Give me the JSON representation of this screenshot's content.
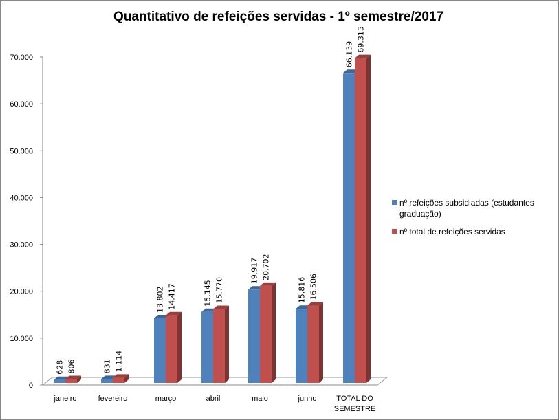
{
  "chart_data": {
    "type": "bar",
    "title": "Quantitativo de refeições servidas - 1º semestre/2017",
    "categories": [
      "janeiro",
      "fevereiro",
      "março",
      "abril",
      "maio",
      "junho",
      "TOTAL DO SEMESTRE"
    ],
    "series": [
      {
        "name": "nº refeições subsidiadas (estudantes graduação)",
        "color": "#4F81BD",
        "values": [
          628,
          831,
          13802,
          15145,
          19917,
          15816,
          66139
        ],
        "labels": [
          "628",
          "831",
          "13.802",
          "15.145",
          "19.917",
          "15.816",
          "66.139"
        ]
      },
      {
        "name": "nº total de refeições servidas",
        "color": "#C0504D",
        "values": [
          806,
          1114,
          14417,
          15770,
          20702,
          16506,
          69315
        ],
        "labels": [
          "806",
          "1.114",
          "14.417",
          "15.770",
          "20.702",
          "16.506",
          "69.315"
        ]
      }
    ],
    "yticks": [
      "0",
      "10.000",
      "20.000",
      "30.000",
      "40.000",
      "50.000",
      "60.000",
      "70.000"
    ],
    "ylim": [
      0,
      70000
    ],
    "grid": false,
    "legend": "right",
    "style": "3d-clustered-column"
  }
}
